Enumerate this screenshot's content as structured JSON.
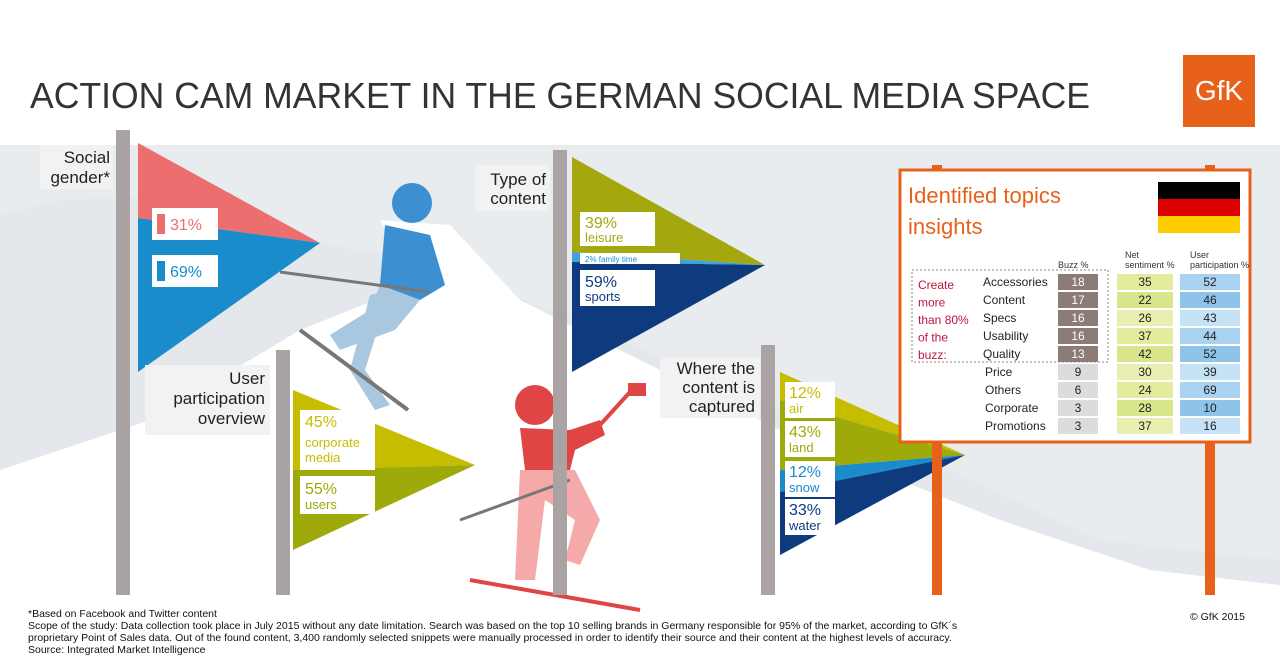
{
  "header": {
    "title": "ACTION CAM MARKET IN THE GERMAN SOCIAL MEDIA SPACE",
    "logo": "GfK"
  },
  "gender": {
    "lines": [
      "Social",
      "gender*"
    ],
    "female": "31%",
    "male": "69%"
  },
  "content_type": {
    "lines": [
      "Type of",
      "content"
    ],
    "leisure": {
      "value": "39%",
      "label": "leisure"
    },
    "family": "2% family time",
    "sports": {
      "value": "59%",
      "label": "sports"
    }
  },
  "participation": {
    "lines": [
      "User",
      "participation",
      "overview"
    ],
    "corporate": {
      "value": "45%",
      "label_lines": [
        "corporate",
        "media"
      ]
    },
    "users": {
      "value": "55%",
      "label": "users"
    }
  },
  "capture": {
    "lines": [
      "Where the",
      "content is",
      "captured"
    ],
    "items": [
      {
        "value": "12%",
        "label": "air"
      },
      {
        "value": "43%",
        "label": "land"
      },
      {
        "value": "12%",
        "label": "snow"
      },
      {
        "value": "33%",
        "label": "water"
      }
    ]
  },
  "topics": {
    "title_lines": [
      "Identified topics",
      "insights"
    ],
    "columns": [
      [
        "Buzz %"
      ],
      [
        "Net",
        "sentiment %"
      ],
      [
        "User",
        "participation %"
      ]
    ],
    "note_lines": [
      "Create",
      "more",
      "than 80%",
      "of the",
      "buzz:"
    ],
    "rows": [
      [
        "Accessories",
        18,
        35,
        52
      ],
      [
        "Content",
        17,
        22,
        46
      ],
      [
        "Specs",
        16,
        26,
        43
      ],
      [
        "Usability",
        16,
        37,
        44
      ],
      [
        "Quality",
        13,
        42,
        52
      ],
      [
        "Price",
        9,
        30,
        39
      ],
      [
        "Others",
        6,
        24,
        69
      ],
      [
        "Corporate",
        3,
        28,
        10
      ],
      [
        "Promotions",
        3,
        37,
        16
      ]
    ]
  },
  "footer": {
    "lines": [
      "*Based on Facebook and Twitter content",
      "Scope of the study: Data collection took place in July 2015 without any date limitation. Search was based on the top 10 selling brands in Germany responsible for 95% of the market, according to GfK´s",
      "proprietary Point of Sales data. Out of the found content, 3,400 randomly selected snippets were manually processed in order to identify their source and their content at the highest levels of accuracy.",
      "Source: Integrated Market Intelligence"
    ],
    "copyright": "© GfK 2015"
  }
}
